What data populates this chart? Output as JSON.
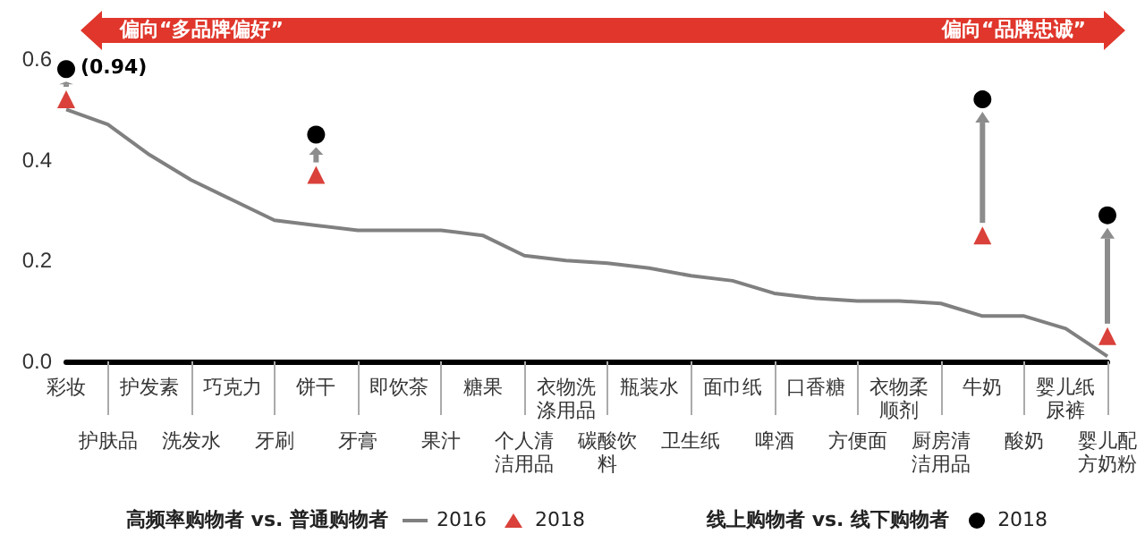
{
  "chart_data": {
    "type": "line",
    "categories": [
      "彩妆",
      "护肤品",
      "护发素",
      "洗发水",
      "巧克力",
      "牙刷",
      "饼干",
      "牙膏",
      "即饮茶",
      "果汁",
      "糖果",
      "个人清洁用品",
      "衣物洗涤用品",
      "碳酸饮料",
      "瓶装水",
      "卫生纸",
      "面巾纸",
      "啤酒",
      "口香糖",
      "方便面",
      "衣物柔顺剂",
      "厨房清洁用品",
      "牛奶",
      "酸奶",
      "婴儿纸尿裤",
      "婴儿配方奶粉"
    ],
    "series": [
      {
        "name": "2016",
        "type": "line",
        "color": "#808080",
        "marker": "none",
        "line_style": "solid",
        "values": [
          0.5,
          0.47,
          0.41,
          0.36,
          0.32,
          0.28,
          0.27,
          0.26,
          0.26,
          0.26,
          0.25,
          0.21,
          0.2,
          0.195,
          0.185,
          0.17,
          0.16,
          0.135,
          0.125,
          0.12,
          0.12,
          0.115,
          0.09,
          0.09,
          0.065,
          0.01
        ]
      },
      {
        "name": "2018",
        "type": "scatter",
        "color": "#d9413a",
        "marker": "triangle",
        "values": [
          0.52,
          null,
          null,
          null,
          null,
          null,
          0.37,
          null,
          null,
          null,
          null,
          null,
          null,
          null,
          null,
          null,
          null,
          null,
          null,
          null,
          null,
          null,
          0.25,
          null,
          null,
          0.05
        ]
      },
      {
        "name": "2018",
        "type": "scatter",
        "color": "#000000",
        "marker": "circle",
        "values": [
          0.58,
          null,
          null,
          null,
          null,
          null,
          0.45,
          null,
          null,
          null,
          null,
          null,
          null,
          null,
          null,
          null,
          null,
          null,
          null,
          null,
          null,
          null,
          0.52,
          null,
          null,
          0.29
        ]
      }
    ],
    "annotations": [
      "偏向“多品牌偏好”",
      "偏向“品牌忠诚”",
      "高频率购物者 vs. 普通购物者",
      "线上购物者 vs. 线下购物者",
      {
        "text": "(0.94)",
        "x": "彩妆",
        "y": 0.58
      }
    ],
    "ylim": [
      0,
      0.6
    ],
    "yticks": [
      {
        "value": 0,
        "label": "0.0"
      },
      {
        "value": 0.2,
        "label": "0.2"
      },
      {
        "value": 0.4,
        "label": "0.4"
      },
      {
        "value": 0.6,
        "label": "0.6"
      }
    ],
    "grid": false,
    "legend": "bottom"
  }
}
